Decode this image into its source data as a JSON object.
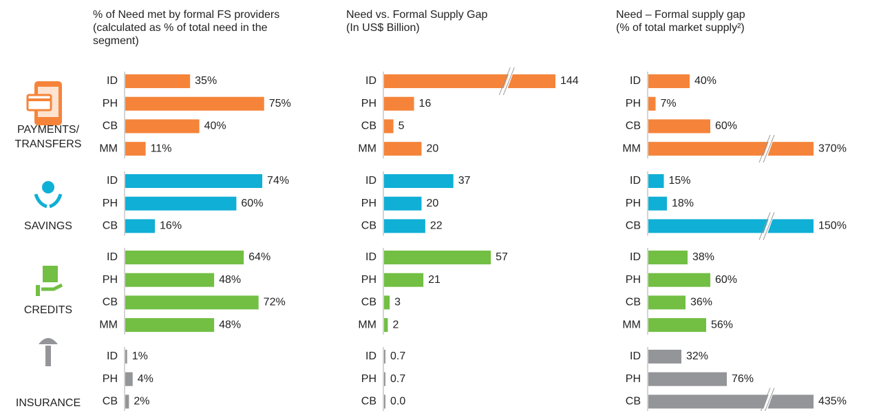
{
  "segments": [
    "PAYMENTS/ TRANSFERS",
    "SAVINGS",
    "CREDITS",
    "INSURANCE"
  ],
  "chart_data": [
    {
      "type": "bar",
      "title": "% of Need met by formal FS providers",
      "subtitle": "(calculated as % of total need in the segment)",
      "xlim": [
        0,
        100
      ],
      "groups": [
        {
          "color": "#f5843a",
          "categories": [
            "ID",
            "PH",
            "CB",
            "MM"
          ],
          "values": [
            35,
            75,
            40,
            11
          ],
          "value_labels": [
            "35%",
            "75%",
            "40%",
            "11%"
          ]
        },
        {
          "color": "#10afd6",
          "categories": [
            "ID",
            "PH",
            "CB"
          ],
          "values": [
            74,
            60,
            16
          ],
          "value_labels": [
            "74%",
            "60%",
            "16%"
          ]
        },
        {
          "color": "#72bf44",
          "categories": [
            "ID",
            "PH",
            "CB",
            "MM"
          ],
          "values": [
            64,
            48,
            72,
            48
          ],
          "value_labels": [
            "64%",
            "48%",
            "72%",
            "48%"
          ]
        },
        {
          "color": "#939598",
          "categories": [
            "ID",
            "PH",
            "CB"
          ],
          "values": [
            1,
            4,
            2
          ],
          "value_labels": [
            "1%",
            "4%",
            "2%"
          ]
        }
      ]
    },
    {
      "type": "bar",
      "title": "Need vs. Formal Supply Gap",
      "subtitle": "(In US$ Billion)",
      "xlim": [
        0,
        90
      ],
      "groups": [
        {
          "color": "#f5843a",
          "categories": [
            "ID",
            "PH",
            "CB",
            "MM"
          ],
          "values": [
            144,
            16,
            5,
            20
          ],
          "value_labels": [
            "144",
            "16",
            "5",
            "20"
          ]
        },
        {
          "color": "#10afd6",
          "categories": [
            "ID",
            "PH",
            "CB"
          ],
          "values": [
            37,
            20,
            22
          ],
          "value_labels": [
            "37",
            "20",
            "22"
          ]
        },
        {
          "color": "#72bf44",
          "categories": [
            "ID",
            "PH",
            "CB",
            "MM"
          ],
          "values": [
            57,
            21,
            3,
            2
          ],
          "value_labels": [
            "57",
            "21",
            "3",
            "2"
          ]
        },
        {
          "color": "#939598",
          "categories": [
            "ID",
            "PH",
            "CB"
          ],
          "values": [
            0.7,
            0.7,
            0
          ],
          "value_labels": [
            "0.7",
            "0.7",
            "0.0"
          ]
        }
      ]
    },
    {
      "type": "bar",
      "title": "Need – Formal supply gap",
      "subtitle": "(% of total market supply²)",
      "xlim": [
        0,
        100
      ],
      "groups": [
        {
          "color": "#f5843a",
          "categories": [
            "ID",
            "PH",
            "CB",
            "MM"
          ],
          "values": [
            40,
            7,
            60,
            370
          ],
          "value_labels": [
            "40%",
            "7%",
            "60%",
            "370%"
          ]
        },
        {
          "color": "#10afd6",
          "categories": [
            "ID",
            "PH",
            "CB"
          ],
          "values": [
            15,
            18,
            150
          ],
          "value_labels": [
            "15%",
            "18%",
            "150%"
          ]
        },
        {
          "color": "#72bf44",
          "categories": [
            "ID",
            "PH",
            "CB",
            "MM"
          ],
          "values": [
            38,
            60,
            36,
            56
          ],
          "value_labels": [
            "38%",
            "60%",
            "36%",
            "56%"
          ]
        },
        {
          "color": "#939598",
          "categories": [
            "ID",
            "PH",
            "CB"
          ],
          "values": [
            32,
            76,
            435
          ],
          "value_labels": [
            "32%",
            "76%",
            "435%"
          ]
        }
      ]
    }
  ]
}
